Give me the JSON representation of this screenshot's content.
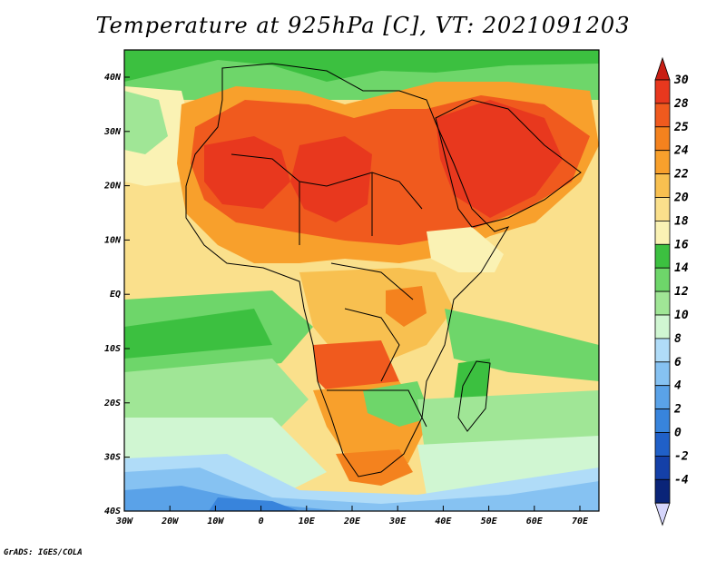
{
  "title": "Temperature at 925hPa [C], VT: 2021091203",
  "credit": "GrADS: IGES/COLA",
  "map": {
    "lat_labels": [
      "40N",
      "30N",
      "20N",
      "10N",
      "EQ",
      "10S",
      "20S",
      "30S",
      "40S"
    ],
    "lon_labels": [
      "30W",
      "20W",
      "10W",
      "0",
      "10E",
      "20E",
      "30E",
      "40E",
      "50E",
      "60E",
      "70E"
    ]
  },
  "colorbar": {
    "labels": [
      "30",
      "28",
      "25",
      "24",
      "22",
      "20",
      "18",
      "16",
      "14",
      "12",
      "10",
      "8",
      "6",
      "4",
      "2",
      "0",
      "-2",
      "-4"
    ],
    "colors": [
      "#e8381e",
      "#f05a1e",
      "#f4821e",
      "#f8a02c",
      "#f8c050",
      "#fae08c",
      "#faf2b4",
      "#3cc040",
      "#6ed66a",
      "#a0e696",
      "#d0f6d2",
      "#b0dcf8",
      "#86c2f2",
      "#5aa2e8",
      "#3884dc",
      "#2060c8",
      "#1440a8",
      "#0a2478"
    ],
    "top_color": "#c81e14",
    "bottom_color": "#d6d6fc"
  }
}
